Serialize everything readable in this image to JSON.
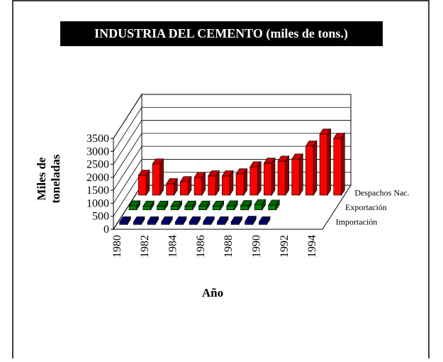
{
  "chart_data": {
    "type": "bar3d",
    "title": "INDUSTRIA DEL CEMENTO (miles de tons.)",
    "ylabel": [
      "Miles de",
      "toneladas"
    ],
    "xlabel": "Año",
    "categories": [
      "1980",
      null,
      "1982",
      null,
      "1984",
      null,
      "1986",
      null,
      "1988",
      null,
      "1990",
      null,
      "1992",
      null,
      "1994"
    ],
    "series": [
      {
        "name": "Importación",
        "color": "#000080",
        "values": [
          100,
          100,
          100,
          100,
          100,
          100,
          100,
          100,
          100,
          120,
          100,
          null,
          null,
          null,
          null
        ]
      },
      {
        "name": "Exportación",
        "color": "#008000",
        "values": [
          150,
          140,
          140,
          140,
          140,
          140,
          140,
          150,
          160,
          200,
          180,
          null,
          null,
          null,
          null
        ]
      },
      {
        "name": "Despachos Nac.",
        "color": "#ff0000",
        "values": [
          765,
          1200,
          440,
          520,
          680,
          740,
          740,
          820,
          1090,
          1230,
          1310,
          1390,
          1890,
          2350,
          2190
        ]
      }
    ],
    "ylim": [
      0,
      3500
    ],
    "yticks": [
      0,
      500,
      1000,
      1500,
      2000,
      2500,
      3000,
      3500
    ],
    "grid": true
  }
}
